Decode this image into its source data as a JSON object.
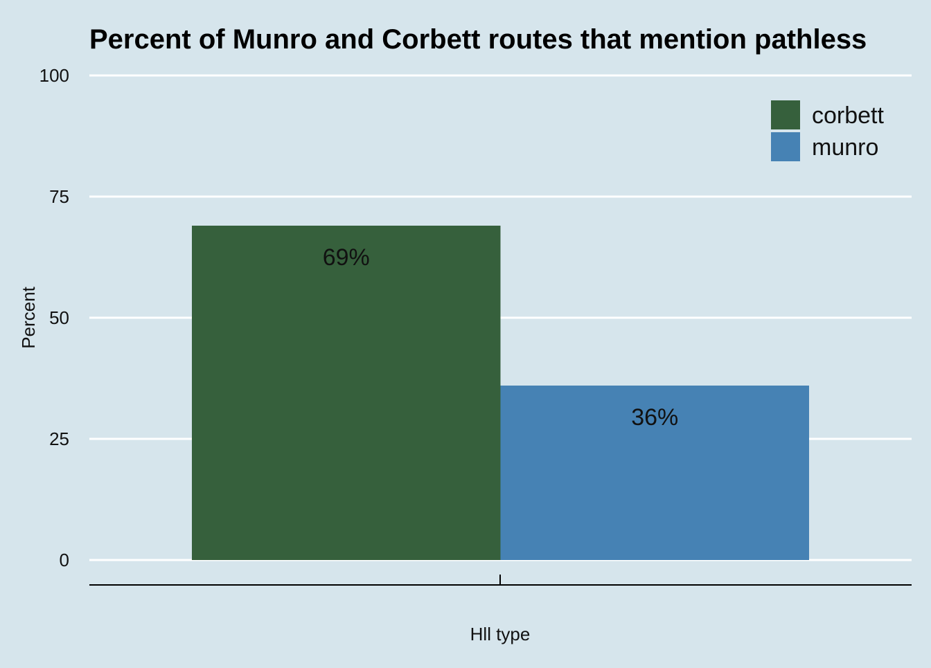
{
  "chart_data": {
    "type": "bar",
    "title": "Percent of Munro and Corbett routes that mention pathless",
    "xlabel": "Hll type",
    "ylabel": "Percent",
    "ylim": [
      0,
      100
    ],
    "yticks": [
      0,
      25,
      50,
      75,
      100
    ],
    "grid": true,
    "legend_position": "top-right",
    "series": [
      {
        "name": "corbett",
        "value": 69,
        "label": "69%",
        "color": "#36603c"
      },
      {
        "name": "munro",
        "value": 36,
        "label": "36%",
        "color": "#4682b4"
      }
    ]
  },
  "colors": {
    "background": "#d6e5ec",
    "gridline": "#ffffff"
  }
}
